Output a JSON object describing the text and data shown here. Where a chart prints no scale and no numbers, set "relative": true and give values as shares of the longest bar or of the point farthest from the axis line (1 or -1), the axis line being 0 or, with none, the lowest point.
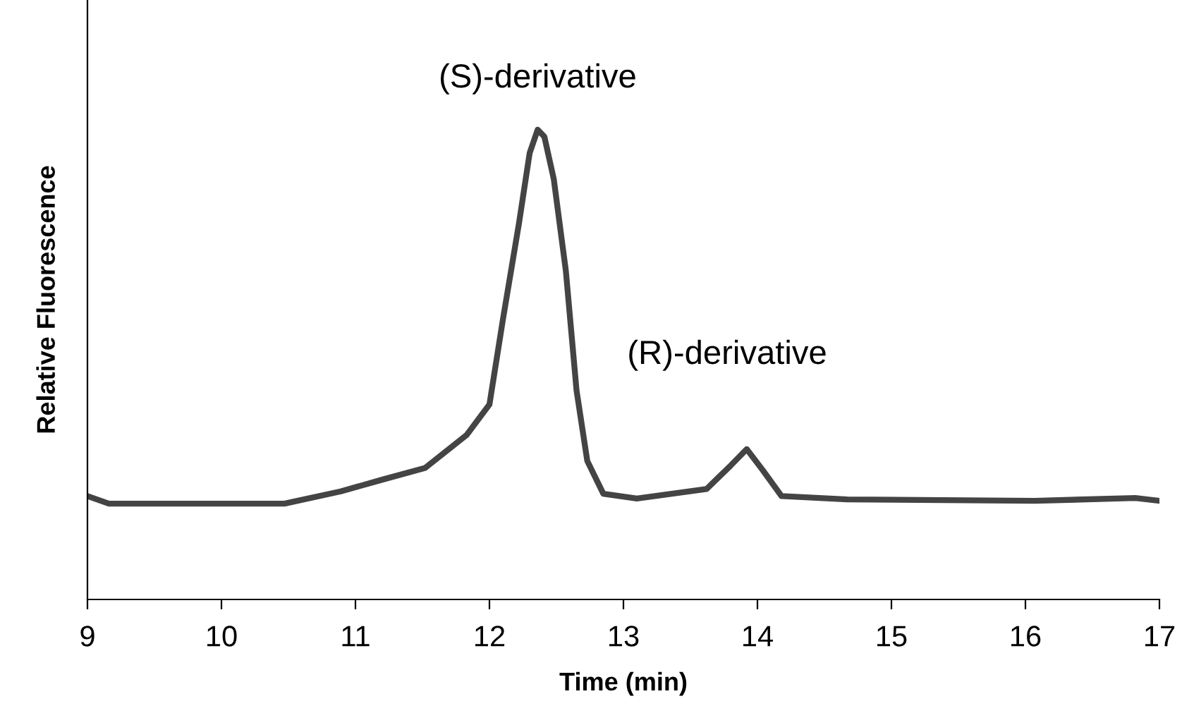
{
  "chart_data": {
    "type": "line",
    "relative": true,
    "xlabel": "Time (min)",
    "ylabel": "Relative Fluorescence",
    "xlim": [
      9,
      17
    ],
    "xticks": [
      9,
      10,
      11,
      12,
      13,
      14,
      15,
      16,
      17
    ],
    "grid": false,
    "legend": false,
    "marker": "none",
    "line_style": "solid",
    "annotations": [
      {
        "text": "(S)-derivative",
        "x": 12.36,
        "y": 1.0
      },
      {
        "text": "(R)-derivative",
        "x": 13.92,
        "y": 0.32
      }
    ],
    "series": [
      {
        "color": "#444444",
        "x": [
          9.0,
          9.16,
          10.47,
          10.89,
          11.2,
          11.52,
          11.83,
          12.0,
          12.1,
          12.22,
          12.3,
          12.36,
          12.41,
          12.48,
          12.57,
          12.65,
          12.73,
          12.85,
          13.1,
          13.62,
          13.8,
          13.92,
          14.04,
          14.18,
          14.67,
          16.07,
          16.82,
          17.0
        ],
        "values": [
          0.22,
          0.204,
          0.204,
          0.23,
          0.255,
          0.28,
          0.35,
          0.415,
          0.595,
          0.8,
          0.95,
          1.0,
          0.985,
          0.895,
          0.7,
          0.445,
          0.295,
          0.225,
          0.215,
          0.235,
          0.285,
          0.32,
          0.275,
          0.22,
          0.213,
          0.21,
          0.216,
          0.21
        ]
      }
    ]
  }
}
